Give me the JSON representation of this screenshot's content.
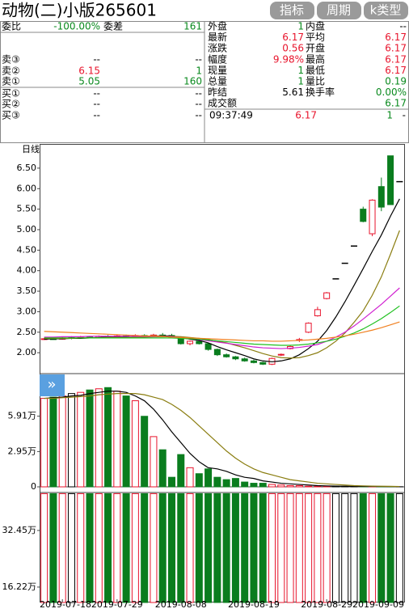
{
  "header": {
    "title": "动物(二)小版265601",
    "buttons": [
      "指标",
      "周期",
      "k类型"
    ]
  },
  "order_book": {
    "ratio_label": "委比",
    "ratio_value": "-100.00%",
    "diff_label": "委差",
    "diff_value": "161",
    "levels": [
      {
        "label": "卖③",
        "price": "--",
        "volume": "--"
      },
      {
        "label": "卖②",
        "price": "6.15",
        "volume": "1"
      },
      {
        "label": "卖①",
        "price": "5.05",
        "volume": "160"
      },
      {
        "label": "买①",
        "price": "--",
        "volume": "--"
      },
      {
        "label": "买②",
        "price": "--",
        "volume": "--"
      },
      {
        "label": "买③",
        "price": "--",
        "volume": "--"
      }
    ]
  },
  "stats": {
    "rows": [
      [
        "外盘",
        "1",
        "内盘",
        "--"
      ],
      [
        "最新",
        "6.17",
        "平均",
        "6.17"
      ],
      [
        "涨跌",
        "0.56",
        "开盘",
        "6.17"
      ],
      [
        "幅度",
        "9.98%",
        "最高",
        "6.17"
      ],
      [
        "现量",
        "1",
        "最低",
        "6.17"
      ],
      [
        "总量",
        "1",
        "量比",
        "0.19"
      ],
      [
        "昨结",
        "5.61",
        "换手率",
        "0.00%"
      ]
    ],
    "turnover_label": "成交额",
    "turnover_value": "6.17",
    "trade": {
      "time": "09:37:49",
      "price": "6.17",
      "volume": "1",
      "side": "-"
    }
  },
  "chart_data": [
    {
      "type": "candlestick",
      "title": "日线",
      "open": [
        2.33,
        2.34,
        2.33,
        2.36,
        2.36,
        2.38,
        2.36,
        2.4,
        2.38,
        2.41,
        2.4,
        2.42,
        2.4,
        2.43,
        2.42,
        2.38,
        2.22,
        2.28,
        2.22,
        2.08,
        1.95,
        1.9,
        1.85,
        1.8,
        1.76,
        1.72,
        1.95,
        2.1,
        2.3,
        2.5,
        2.9,
        3.32,
        3.8,
        4.18,
        4.6,
        5.5,
        4.9,
        6.05,
        6.8,
        6.17
      ],
      "high": [
        2.36,
        2.37,
        2.38,
        2.4,
        2.41,
        2.4,
        2.42,
        2.43,
        2.44,
        2.44,
        2.45,
        2.45,
        2.46,
        2.48,
        2.46,
        2.4,
        2.3,
        2.32,
        2.25,
        2.1,
        1.98,
        1.92,
        1.88,
        1.83,
        1.78,
        1.88,
        1.98,
        2.18,
        2.36,
        2.74,
        3.12,
        3.48,
        3.8,
        4.18,
        4.6,
        5.56,
        5.74,
        6.27,
        6.8,
        6.17
      ],
      "low": [
        2.31,
        2.32,
        2.32,
        2.33,
        2.34,
        2.35,
        2.35,
        2.36,
        2.36,
        2.38,
        2.38,
        2.39,
        2.38,
        2.4,
        2.36,
        2.2,
        2.18,
        2.2,
        2.05,
        1.92,
        1.88,
        1.82,
        1.78,
        1.74,
        1.7,
        1.7,
        1.92,
        2.08,
        2.26,
        2.48,
        2.88,
        3.3,
        3.8,
        4.18,
        4.6,
        5.18,
        4.84,
        5.45,
        5.61,
        6.17
      ],
      "close": [
        2.34,
        2.33,
        2.36,
        2.36,
        2.38,
        2.36,
        2.4,
        2.38,
        2.41,
        2.4,
        2.42,
        2.4,
        2.43,
        2.42,
        2.38,
        2.22,
        2.28,
        2.22,
        2.08,
        1.95,
        1.9,
        1.85,
        1.8,
        1.76,
        1.72,
        1.86,
        1.96,
        2.15,
        2.32,
        2.72,
        3.05,
        3.46,
        3.8,
        4.18,
        4.6,
        5.2,
        5.72,
        5.55,
        5.61,
        6.17
      ],
      "series": [
        {
          "color": "#000000",
          "values": [
            2.33,
            2.34,
            2.34,
            2.35,
            2.35,
            2.36,
            2.37,
            2.38,
            2.39,
            2.39,
            2.4,
            2.4,
            2.41,
            2.41,
            2.41,
            2.37,
            2.33,
            2.3,
            2.24,
            2.15,
            2.07,
            2.0,
            1.93,
            1.85,
            1.8,
            1.78,
            1.8,
            1.85,
            1.95,
            2.1,
            2.28,
            2.54,
            2.87,
            3.24,
            3.64,
            4.05,
            4.47,
            4.87,
            5.33,
            5.75
          ]
        },
        {
          "color": "#8a7d10",
          "values": [
            2.35,
            2.35,
            2.35,
            2.35,
            2.36,
            2.36,
            2.36,
            2.37,
            2.37,
            2.37,
            2.38,
            2.38,
            2.39,
            2.39,
            2.4,
            2.39,
            2.37,
            2.35,
            2.32,
            2.28,
            2.24,
            2.18,
            2.12,
            2.05,
            1.98,
            1.92,
            1.88,
            1.87,
            1.88,
            1.93,
            2.0,
            2.12,
            2.28,
            2.48,
            2.74,
            3.02,
            3.4,
            3.85,
            4.4,
            4.98
          ]
        },
        {
          "color": "#d020d0",
          "values": [
            2.38,
            2.38,
            2.39,
            2.39,
            2.39,
            2.4,
            2.4,
            2.4,
            2.4,
            2.4,
            2.4,
            2.4,
            2.4,
            2.4,
            2.39,
            2.37,
            2.35,
            2.32,
            2.29,
            2.26,
            2.23,
            2.2,
            2.17,
            2.14,
            2.12,
            2.11,
            2.1,
            2.11,
            2.13,
            2.16,
            2.2,
            2.28,
            2.38,
            2.5,
            2.65,
            2.82,
            3.0,
            3.18,
            3.38,
            3.58
          ]
        },
        {
          "color": "#20c020",
          "values": [
            2.36,
            2.36,
            2.36,
            2.36,
            2.36,
            2.36,
            2.36,
            2.36,
            2.36,
            2.36,
            2.36,
            2.36,
            2.36,
            2.36,
            2.36,
            2.35,
            2.34,
            2.33,
            2.31,
            2.29,
            2.27,
            2.25,
            2.23,
            2.21,
            2.2,
            2.19,
            2.18,
            2.18,
            2.19,
            2.21,
            2.24,
            2.28,
            2.33,
            2.4,
            2.48,
            2.58,
            2.7,
            2.83,
            2.98,
            3.14
          ]
        },
        {
          "color": "#f08020",
          "values": [
            2.52,
            2.51,
            2.5,
            2.49,
            2.48,
            2.47,
            2.46,
            2.45,
            2.44,
            2.43,
            2.42,
            2.41,
            2.41,
            2.4,
            2.38,
            2.37,
            2.36,
            2.35,
            2.34,
            2.33,
            2.32,
            2.31,
            2.3,
            2.29,
            2.29,
            2.28,
            2.28,
            2.29,
            2.3,
            2.31,
            2.33,
            2.35,
            2.38,
            2.41,
            2.45,
            2.5,
            2.55,
            2.61,
            2.68,
            2.75
          ]
        }
      ],
      "ylim": [
        1.49,
        7.05
      ],
      "yticks": [
        {
          "value": 2,
          "label": "2.00"
        },
        {
          "value": 2.5,
          "label": "2.50"
        },
        {
          "value": 3,
          "label": "3.00"
        },
        {
          "value": 3.5,
          "label": "3.50"
        },
        {
          "value": 4,
          "label": "4.00"
        },
        {
          "value": 4.5,
          "label": "4.50"
        },
        {
          "value": 5,
          "label": "5.00"
        },
        {
          "value": 5.5,
          "label": "5.50"
        },
        {
          "value": 6,
          "label": "6.00"
        },
        {
          "value": 6.5,
          "label": "6.50"
        }
      ]
    },
    {
      "type": "bar",
      "values": [
        7.4,
        7.5,
        7.6,
        7.8,
        7.9,
        8.1,
        8.2,
        8.3,
        8.0,
        7.6,
        7.2,
        5.9,
        4.2,
        3.1,
        0.8,
        2.7,
        1.6,
        1.1,
        1.5,
        0.8,
        0.6,
        0.7,
        0.4,
        0.3,
        0.3,
        0.2,
        0.15,
        0.1,
        0.1,
        0.05,
        0.05,
        0.04,
        0.03,
        0.03,
        0.02,
        0.03,
        0.02,
        0.03,
        0.02,
        0.01
      ],
      "series": [
        {
          "color": "#000000",
          "values": [
            7.4,
            7.45,
            7.5,
            7.6,
            7.65,
            7.8,
            7.9,
            8.0,
            8.0,
            7.9,
            7.6,
            7.2,
            6.5,
            5.6,
            4.6,
            3.7,
            2.8,
            2.1,
            1.6,
            1.5,
            1.3,
            1.0,
            0.8,
            0.7,
            0.5,
            0.4,
            0.3,
            0.25,
            0.2,
            0.15,
            0.1,
            0.08,
            0.06,
            0.05,
            0.04,
            0.03,
            0.03,
            0.03,
            0.02,
            0.02
          ]
        },
        {
          "color": "#8a7d10",
          "values": [
            7.4,
            7.4,
            7.45,
            7.5,
            7.55,
            7.6,
            7.7,
            7.75,
            7.8,
            7.8,
            7.8,
            7.7,
            7.5,
            7.3,
            6.9,
            6.4,
            5.8,
            5.1,
            4.4,
            3.7,
            3.0,
            2.4,
            1.9,
            1.5,
            1.2,
            1.0,
            0.8,
            0.6,
            0.5,
            0.4,
            0.3,
            0.25,
            0.2,
            0.15,
            0.1,
            0.08,
            0.06,
            0.05,
            0.04,
            0.03
          ]
        }
      ],
      "ylim": [
        0,
        9.4
      ],
      "yticks": [
        0,
        {
          "value": 2.95,
          "label": "2.95万"
        },
        {
          "value": 5.91,
          "label": "5.91万"
        }
      ]
    },
    {
      "type": "bar",
      "categories": [
        null,
        null,
        "2019-07-18",
        null,
        null,
        null,
        null,
        null,
        "2019-07-29",
        null,
        null,
        null,
        null,
        null,
        null,
        "2019-08-08",
        null,
        null,
        null,
        null,
        null,
        null,
        null,
        "2019-08-19",
        null,
        null,
        null,
        null,
        null,
        null,
        null,
        "2019-08-29",
        null,
        null,
        null,
        null,
        null,
        "2019-09-09",
        null,
        null
      ],
      "values": [
        43,
        43,
        43,
        43,
        43,
        43,
        43,
        43,
        43,
        43,
        43,
        43,
        43,
        43,
        43,
        43,
        43,
        43,
        43,
        43,
        43,
        43,
        43,
        43,
        43,
        43,
        43,
        43,
        43,
        43,
        43,
        43,
        43,
        43,
        43,
        43,
        43,
        43,
        43,
        43
      ],
      "ylim": [
        11.8,
        43.1
      ],
      "yticks": [
        {
          "value": 16.22,
          "label": "16.22万"
        },
        {
          "value": 32.45,
          "label": "32.45万"
        }
      ]
    }
  ]
}
